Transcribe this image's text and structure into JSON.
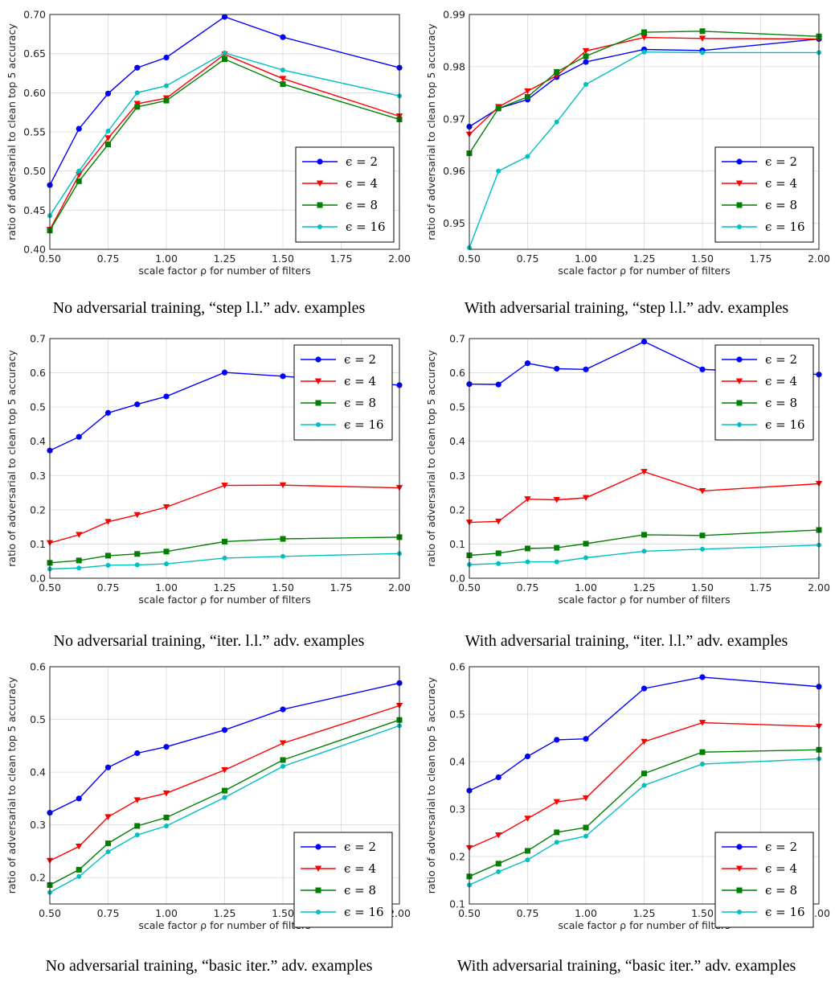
{
  "chart_data": [
    {
      "type": "line",
      "caption": "No adversarial training, “step l.l.” adv. examples",
      "xlabel": "scale factor ρ for number of filters",
      "ylabel": "ratio of adversarial to clean top 5 accuracy",
      "xlim": [
        0.5,
        2.0
      ],
      "ylim": [
        0.4,
        0.7
      ],
      "xticks": [
        "0.50",
        "0.75",
        "1.00",
        "1.25",
        "1.50",
        "1.75",
        "2.00"
      ],
      "yticks": [
        "0.40",
        "0.45",
        "0.50",
        "0.55",
        "0.60",
        "0.65",
        "0.70"
      ],
      "grid": true,
      "legend_position": "lower-right",
      "x": [
        0.5,
        0.625,
        0.75,
        0.875,
        1.0,
        1.25,
        1.5,
        2.0
      ],
      "series": [
        {
          "name": "ϵ = 2",
          "color": "#0000ff",
          "marker": "circle",
          "values": [
            0.482,
            0.554,
            0.599,
            0.632,
            0.645,
            0.697,
            0.671,
            0.632
          ]
        },
        {
          "name": "ϵ = 4",
          "color": "#ff0000",
          "marker": "triangle-down",
          "values": [
            0.425,
            0.495,
            0.542,
            0.586,
            0.593,
            0.649,
            0.618,
            0.57
          ]
        },
        {
          "name": "ϵ = 8",
          "color": "#007f00",
          "marker": "square",
          "values": [
            0.424,
            0.487,
            0.534,
            0.582,
            0.59,
            0.643,
            0.611,
            0.566
          ]
        },
        {
          "name": "ϵ = 16",
          "color": "#00bfbf",
          "marker": "circle-small",
          "values": [
            0.443,
            0.5,
            0.551,
            0.6,
            0.609,
            0.651,
            0.629,
            0.596
          ]
        }
      ]
    },
    {
      "type": "line",
      "caption": "With adversarial training, “step l.l.” adv. examples",
      "xlabel": "scale factor ρ for number of filters",
      "ylabel": "ratio of adversarial to clean top 5 accuracy",
      "xlim": [
        0.5,
        2.0
      ],
      "ylim": [
        0.945,
        0.99
      ],
      "xticks": [
        "0.50",
        "0.75",
        "1.00",
        "1.25",
        "1.50",
        "1.75",
        "2.00"
      ],
      "yticks": [
        "0.95",
        "0.96",
        "0.97",
        "0.98",
        "0.99"
      ],
      "ytick_values": [
        0.95,
        0.96,
        0.97,
        0.98,
        0.99
      ],
      "grid": true,
      "legend_position": "lower-right",
      "x": [
        0.5,
        0.625,
        0.75,
        0.875,
        1.0,
        1.25,
        1.5,
        2.0
      ],
      "series": [
        {
          "name": "ϵ = 2",
          "color": "#0000ff",
          "marker": "circle",
          "values": [
            0.9685,
            0.972,
            0.9737,
            0.978,
            0.9809,
            0.9833,
            0.9831,
            0.9853
          ]
        },
        {
          "name": "ϵ = 4",
          "color": "#ff0000",
          "marker": "triangle-down",
          "values": [
            0.967,
            0.9723,
            0.9753,
            0.9783,
            0.983,
            0.9856,
            0.9854,
            0.9853
          ]
        },
        {
          "name": "ϵ = 8",
          "color": "#007f00",
          "marker": "square",
          "values": [
            0.9634,
            0.972,
            0.9742,
            0.979,
            0.982,
            0.9866,
            0.9868,
            0.9858
          ]
        },
        {
          "name": "ϵ = 16",
          "color": "#00bfbf",
          "marker": "circle-small",
          "values": [
            0.9453,
            0.96,
            0.9628,
            0.9694,
            0.9766,
            0.9828,
            0.9827,
            0.9827
          ]
        }
      ]
    },
    {
      "type": "line",
      "caption": "No adversarial training, “iter. l.l.” adv. examples",
      "xlabel": "scale factor ρ for number of filters",
      "ylabel": "ratio of adversarial to clean top 5 accuracy",
      "xlim": [
        0.5,
        2.0
      ],
      "ylim": [
        0.0,
        0.7
      ],
      "xticks": [
        "0.50",
        "0.75",
        "1.00",
        "1.25",
        "1.50",
        "1.75",
        "2.00"
      ],
      "yticks": [
        "0.0",
        "0.1",
        "0.2",
        "0.3",
        "0.4",
        "0.5",
        "0.6",
        "0.7"
      ],
      "grid": true,
      "legend_position": "upper-right",
      "x": [
        0.5,
        0.625,
        0.75,
        0.875,
        1.0,
        1.25,
        1.5,
        2.0
      ],
      "series": [
        {
          "name": "ϵ = 2",
          "color": "#0000ff",
          "marker": "circle",
          "values": [
            0.373,
            0.413,
            0.483,
            0.508,
            0.531,
            0.601,
            0.59,
            0.564
          ]
        },
        {
          "name": "ϵ = 4",
          "color": "#ff0000",
          "marker": "triangle-down",
          "values": [
            0.103,
            0.127,
            0.165,
            0.185,
            0.208,
            0.271,
            0.272,
            0.264
          ]
        },
        {
          "name": "ϵ = 8",
          "color": "#007f00",
          "marker": "square",
          "values": [
            0.045,
            0.052,
            0.066,
            0.071,
            0.078,
            0.107,
            0.115,
            0.12
          ]
        },
        {
          "name": "ϵ = 16",
          "color": "#00bfbf",
          "marker": "circle-small",
          "values": [
            0.027,
            0.03,
            0.038,
            0.039,
            0.042,
            0.059,
            0.064,
            0.072
          ]
        }
      ]
    },
    {
      "type": "line",
      "caption": "With adversarial training, “iter. l.l.” adv. examples",
      "xlabel": "scale factor ρ for number of filters",
      "ylabel": "ratio of adversarial to clean top 5 accuracy",
      "xlim": [
        0.5,
        2.0
      ],
      "ylim": [
        0.0,
        0.7
      ],
      "xticks": [
        "0.50",
        "0.75",
        "1.00",
        "1.25",
        "1.50",
        "1.75",
        "2.00"
      ],
      "yticks": [
        "0.0",
        "0.1",
        "0.2",
        "0.3",
        "0.4",
        "0.5",
        "0.6",
        "0.7"
      ],
      "grid": true,
      "legend_position": "upper-right",
      "x": [
        0.5,
        0.625,
        0.75,
        0.875,
        1.0,
        1.25,
        1.5,
        2.0
      ],
      "series": [
        {
          "name": "ϵ = 2",
          "color": "#0000ff",
          "marker": "circle",
          "values": [
            0.567,
            0.566,
            0.628,
            0.612,
            0.61,
            0.691,
            0.61,
            0.595
          ]
        },
        {
          "name": "ϵ = 4",
          "color": "#ff0000",
          "marker": "triangle-down",
          "values": [
            0.163,
            0.166,
            0.231,
            0.229,
            0.235,
            0.311,
            0.255,
            0.276
          ]
        },
        {
          "name": "ϵ = 8",
          "color": "#007f00",
          "marker": "square",
          "values": [
            0.067,
            0.073,
            0.087,
            0.089,
            0.101,
            0.127,
            0.125,
            0.141
          ]
        },
        {
          "name": "ϵ = 16",
          "color": "#00bfbf",
          "marker": "circle-small",
          "values": [
            0.04,
            0.043,
            0.048,
            0.048,
            0.06,
            0.079,
            0.085,
            0.097
          ]
        }
      ]
    },
    {
      "type": "line",
      "caption": "No adversarial training, “basic iter.” adv. examples",
      "xlabel": "scale factor ρ for number of filters",
      "ylabel": "ratio of adversarial to clean top 5 accuracy",
      "xlim": [
        0.5,
        2.0
      ],
      "ylim": [
        0.15,
        0.6
      ],
      "xticks": [
        "0.50",
        "0.75",
        "1.00",
        "1.25",
        "1.50",
        "1.75",
        "2.00"
      ],
      "yticks": [
        "0.2",
        "0.3",
        "0.4",
        "0.5",
        "0.6"
      ],
      "ytick_values": [
        0.2,
        0.3,
        0.4,
        0.5,
        0.6
      ],
      "grid": true,
      "legend_position": "lower-right",
      "x": [
        0.5,
        0.625,
        0.75,
        0.875,
        1.0,
        1.25,
        1.5,
        2.0
      ],
      "series": [
        {
          "name": "ϵ = 2",
          "color": "#0000ff",
          "marker": "circle",
          "values": [
            0.323,
            0.35,
            0.409,
            0.436,
            0.448,
            0.48,
            0.519,
            0.569
          ]
        },
        {
          "name": "ϵ = 4",
          "color": "#ff0000",
          "marker": "triangle-down",
          "values": [
            0.232,
            0.259,
            0.315,
            0.347,
            0.36,
            0.404,
            0.455,
            0.526
          ]
        },
        {
          "name": "ϵ = 8",
          "color": "#007f00",
          "marker": "square",
          "values": [
            0.186,
            0.215,
            0.265,
            0.298,
            0.314,
            0.365,
            0.423,
            0.499
          ]
        },
        {
          "name": "ϵ = 16",
          "color": "#00bfbf",
          "marker": "circle-small",
          "values": [
            0.172,
            0.202,
            0.249,
            0.281,
            0.298,
            0.352,
            0.411,
            0.488
          ]
        }
      ]
    },
    {
      "type": "line",
      "caption": "With adversarial training, “basic iter.” adv. examples",
      "xlabel": "scale factor ρ for number of filters",
      "ylabel": "ratio of adversarial to clean top 5 accuracy",
      "xlim": [
        0.5,
        2.0
      ],
      "ylim": [
        0.1,
        0.6
      ],
      "xticks": [
        "0.50",
        "0.75",
        "1.00",
        "1.25",
        "1.50",
        "1.75",
        "2.00"
      ],
      "yticks": [
        "0.1",
        "0.2",
        "0.3",
        "0.4",
        "0.5",
        "0.6"
      ],
      "grid": true,
      "legend_position": "lower-right",
      "x": [
        0.5,
        0.625,
        0.75,
        0.875,
        1.0,
        1.25,
        1.5,
        2.0
      ],
      "series": [
        {
          "name": "ϵ = 2",
          "color": "#0000ff",
          "marker": "circle",
          "values": [
            0.339,
            0.367,
            0.411,
            0.446,
            0.448,
            0.554,
            0.578,
            0.558
          ]
        },
        {
          "name": "ϵ = 4",
          "color": "#ff0000",
          "marker": "triangle-down",
          "values": [
            0.218,
            0.245,
            0.28,
            0.315,
            0.323,
            0.442,
            0.482,
            0.474
          ]
        },
        {
          "name": "ϵ = 8",
          "color": "#007f00",
          "marker": "square",
          "values": [
            0.158,
            0.185,
            0.212,
            0.251,
            0.261,
            0.375,
            0.42,
            0.425
          ]
        },
        {
          "name": "ϵ = 16",
          "color": "#00bfbf",
          "marker": "circle-small",
          "values": [
            0.14,
            0.168,
            0.193,
            0.23,
            0.243,
            0.35,
            0.395,
            0.406
          ]
        }
      ]
    }
  ]
}
